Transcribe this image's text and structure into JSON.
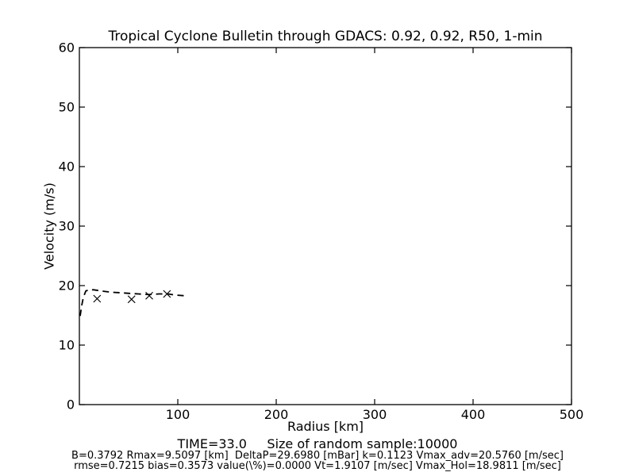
{
  "title": "Tropical Cyclone Bulletin through GDACS: 0.92, 0.92, R50, 1-min",
  "footer": {
    "line1": "TIME=33.0     Size of random sample:10000",
    "line2": "B=0.3792 Rmax=9.5097 [km]  DeltaP=29.6980 [mBar] k=0.1123 Vmax_adv=20.5760 [m/sec]",
    "line3": "rmse=0.7215 bias=0.3573 value(\\%)=0.0000 Vt=1.9107 [m/sec] Vmax_Hol=18.9811 [m/sec]"
  },
  "chart_data": {
    "type": "line",
    "title": "Tropical Cyclone Bulletin through GDACS: 0.92, 0.92, R50, 1-min",
    "xlabel": "Radius [km]",
    "ylabel": "Velocity (m/s)",
    "xlim": [
      0,
      500
    ],
    "ylim": [
      0,
      60
    ],
    "xticks": [
      100,
      200,
      300,
      400,
      500
    ],
    "yticks": [
      0,
      10,
      20,
      30,
      40,
      50,
      60
    ],
    "grid": false,
    "legend_position": "none",
    "axis_color": "#000000",
    "background_color": "#ffffff",
    "series": [
      {
        "name": "holland-wind-profile",
        "type": "line",
        "linestyle": "dashed",
        "color": "#000000",
        "x": [
          0.8,
          2.4,
          4,
          6.5,
          9.7,
          14.5,
          22.6,
          32,
          42,
          51,
          60,
          71,
          81,
          90,
          98,
          107
        ],
        "y": [
          14.9,
          16.7,
          18.0,
          19.1,
          19.3,
          19.3,
          19.1,
          18.9,
          18.8,
          18.7,
          18.6,
          18.5,
          18.6,
          18.6,
          18.4,
          18.3
        ]
      },
      {
        "name": "bulletin-sample-points",
        "type": "scatter",
        "marker": "x",
        "color": "#000000",
        "x": [
          18,
          53,
          71,
          89
        ],
        "y": [
          17.8,
          17.7,
          18.3,
          18.6
        ]
      }
    ]
  }
}
